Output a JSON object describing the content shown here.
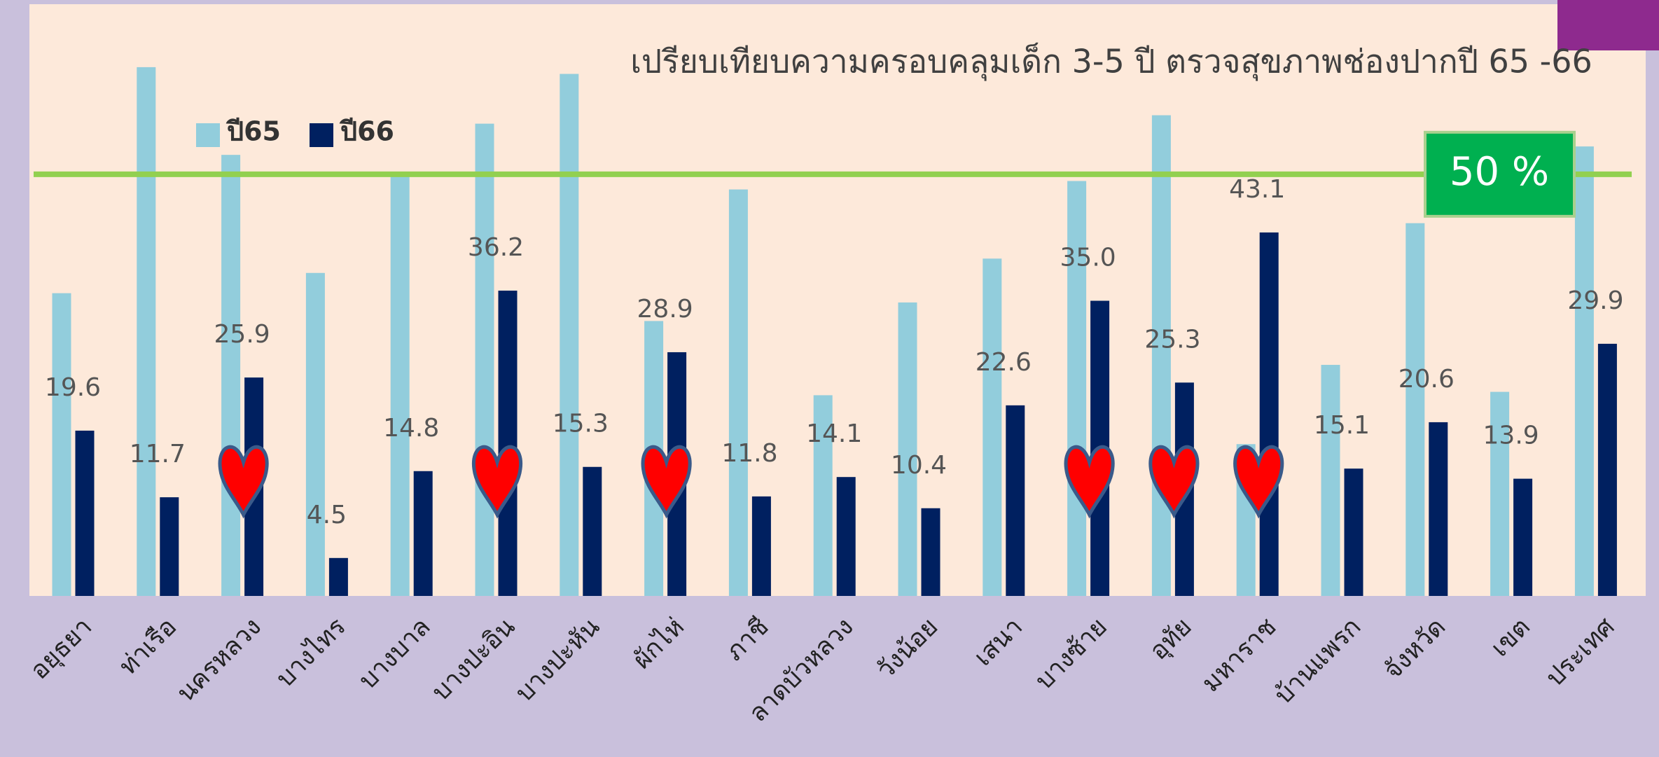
{
  "chart_data": {
    "type": "bar",
    "title": "เปรียบเทียบความครอบคลุมเด็ก  3-5 ปี ตรวจสุขภาพช่องปากปี 65 -66",
    "categories": [
      "อยุธยา",
      "ท่าเรือ",
      "นครหลวง",
      "บางไทร",
      "บางบาล",
      "บางปะอิน",
      "บางปะหัน",
      "ผักไห่",
      "ภาชี",
      "ลาดบัวหลวง",
      "วังน้อย",
      "เสนา",
      "บางซ้าย",
      "อุทัย",
      "มหาราช",
      "บ้านแพรก",
      "จังหวัด",
      "เขต",
      "ประเทศ"
    ],
    "series": [
      {
        "name": "ปี65",
        "color": "#92cddc",
        "values": [
          35.9,
          62.7,
          52.3,
          38.3,
          50.3,
          56.0,
          61.9,
          32.6,
          48.2,
          23.8,
          34.8,
          40.0,
          49.2,
          57.0,
          18.0,
          27.4,
          44.2,
          24.2,
          53.3
        ]
      },
      {
        "name": "ปี66",
        "color": "#002060",
        "values": [
          19.6,
          11.7,
          25.9,
          4.5,
          14.8,
          36.2,
          15.3,
          28.9,
          11.8,
          14.1,
          10.4,
          22.6,
          35.0,
          25.3,
          43.1,
          15.1,
          20.6,
          13.9,
          29.9
        ],
        "value_labels": [
          "19.6",
          "11.7",
          "25.9",
          "4.5",
          "14.8",
          "36.2",
          "15.3",
          "28.9",
          "11.8",
          "14.1",
          "10.4",
          "22.6",
          "35.0",
          "25.3",
          "43.1",
          "15.1",
          "20.6",
          "13.9",
          "29.9"
        ]
      }
    ],
    "ylim": [
      0,
      70
    ],
    "reference_line": {
      "value": 50,
      "label": "50 %",
      "color": "#92d050",
      "box_color": "#00b050"
    }
  }
}
